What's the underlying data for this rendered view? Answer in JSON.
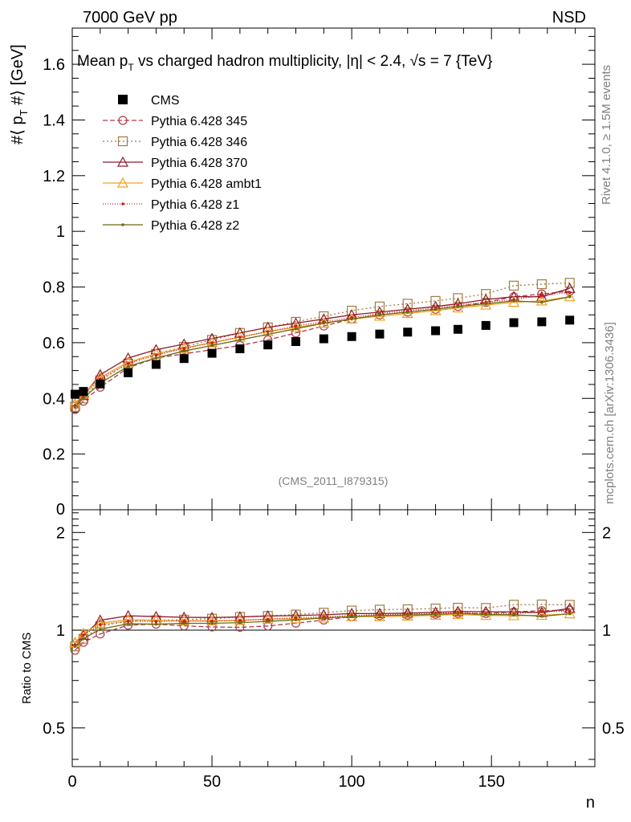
{
  "header": {
    "left": "7000 GeV pp",
    "right": "NSD"
  },
  "side_labels": {
    "rivet": "Rivet 4.1.0, ≥ 1.5M events",
    "mcplots": "mcplots.cern.ch [arXiv:1306.3436]"
  },
  "chart_data": {
    "type": "scatter",
    "title": "Mean p_T vs charged hadron multiplicity, |η| < 2.4, √s = 7 {TeV}",
    "title_parts": {
      "t1": "Mean p",
      "t1_sub": "T",
      "t2": " vs charged hadron multiplicity, ",
      "t3": "|η| < 2.4, ",
      "t4": "√s",
      "t5": " = 7 {TeV}"
    },
    "analysis_id": "(CMS_2011_I879315)",
    "xlabel": "n",
    "ylabel": "#⟨ p_T #⟩ [GeV]",
    "ylabel_parts": {
      "a": "#⟨ p",
      "sub": "T",
      "b": " #⟩ [GeV]"
    },
    "ratio_ylabel": "Ratio to CMS",
    "xlim": [
      0,
      187
    ],
    "ylim": [
      0,
      1.73
    ],
    "ratio_ylim": [
      0.38,
      2.35
    ],
    "x_ticks": [
      0,
      50,
      100,
      150
    ],
    "y_ticks": [
      0.2,
      0.4,
      0.6,
      0.8,
      1,
      1.2,
      1.4,
      1.6
    ],
    "y_tick_labels": [
      "0.2",
      "0.4",
      "0.6",
      "0.8",
      "1",
      "1.2",
      "1.4",
      "1.6"
    ],
    "zero_label": "0",
    "ratio_ticks": [
      0.5,
      1,
      2
    ],
    "ratio_tick_labels": [
      "0.5",
      "1",
      "2"
    ],
    "data": {
      "name": "CMS",
      "color": "#000000",
      "x": [
        1,
        4,
        10,
        20,
        30,
        40,
        50,
        60,
        70,
        80,
        90,
        100,
        110,
        120,
        130,
        138,
        148,
        158,
        168,
        178
      ],
      "y": [
        0.415,
        0.425,
        0.452,
        0.492,
        0.522,
        0.543,
        0.562,
        0.578,
        0.592,
        0.604,
        0.614,
        0.622,
        0.631,
        0.638,
        0.643,
        0.648,
        0.662,
        0.672,
        0.675,
        0.681
      ]
    },
    "series": [
      {
        "name": "Pythia 6.428 345",
        "color": "#B13A4A",
        "dash": "6,3",
        "marker": "circle",
        "x": [
          1,
          4,
          10,
          20,
          30,
          40,
          50,
          60,
          70,
          80,
          90,
          100,
          110,
          120,
          130,
          138,
          148,
          158,
          168,
          178
        ],
        "y": [
          0.36,
          0.39,
          0.44,
          0.51,
          0.545,
          0.56,
          0.575,
          0.59,
          0.61,
          0.635,
          0.66,
          0.685,
          0.7,
          0.71,
          0.72,
          0.73,
          0.745,
          0.765,
          0.775,
          0.785
        ]
      },
      {
        "name": "Pythia 6.428 346",
        "color": "#A07B41",
        "dash": "2,3",
        "marker": "square",
        "x": [
          1,
          4,
          10,
          20,
          30,
          40,
          50,
          60,
          70,
          80,
          90,
          100,
          110,
          120,
          130,
          138,
          148,
          158,
          168,
          178
        ],
        "y": [
          0.37,
          0.4,
          0.465,
          0.525,
          0.56,
          0.585,
          0.61,
          0.635,
          0.655,
          0.675,
          0.695,
          0.715,
          0.73,
          0.74,
          0.75,
          0.76,
          0.775,
          0.805,
          0.81,
          0.815
        ]
      },
      {
        "name": "Pythia 6.428 370",
        "color": "#8E1A2C",
        "dash": "",
        "marker": "triangle",
        "x": [
          1,
          4,
          10,
          20,
          30,
          40,
          50,
          60,
          70,
          80,
          90,
          100,
          110,
          120,
          130,
          138,
          148,
          158,
          168,
          178
        ],
        "y": [
          0.38,
          0.41,
          0.485,
          0.545,
          0.575,
          0.595,
          0.615,
          0.635,
          0.655,
          0.67,
          0.685,
          0.7,
          0.71,
          0.72,
          0.73,
          0.74,
          0.755,
          0.765,
          0.765,
          0.795
        ]
      },
      {
        "name": "Pythia 6.428 ambt1",
        "color": "#F0A020",
        "dash": "",
        "marker": "triangle",
        "x": [
          1,
          4,
          10,
          20,
          30,
          40,
          50,
          60,
          70,
          80,
          90,
          100,
          110,
          120,
          130,
          138,
          148,
          158,
          168,
          178
        ],
        "y": [
          0.38,
          0.415,
          0.475,
          0.53,
          0.56,
          0.58,
          0.6,
          0.62,
          0.64,
          0.655,
          0.67,
          0.685,
          0.695,
          0.705,
          0.715,
          0.725,
          0.735,
          0.745,
          0.75,
          0.765
        ]
      },
      {
        "name": "Pythia 6.428 z1",
        "color": "#CC1B1B",
        "dash": "1,2",
        "marker": "dot",
        "x": [
          1,
          4,
          10,
          20,
          30,
          40,
          50,
          60,
          70,
          80,
          90,
          100,
          110,
          120,
          130,
          138,
          148,
          158,
          168,
          178
        ],
        "y": [
          0.375,
          0.41,
          0.47,
          0.525,
          0.555,
          0.58,
          0.6,
          0.62,
          0.64,
          0.66,
          0.675,
          0.69,
          0.705,
          0.715,
          0.725,
          0.735,
          0.745,
          0.755,
          0.77,
          0.78
        ]
      },
      {
        "name": "Pythia 6.428 z2",
        "color": "#6B6B10",
        "dash": "",
        "marker": "dot",
        "x": [
          1,
          4,
          10,
          20,
          30,
          40,
          50,
          60,
          70,
          80,
          90,
          100,
          110,
          120,
          130,
          138,
          148,
          158,
          168,
          178
        ],
        "y": [
          0.37,
          0.4,
          0.455,
          0.515,
          0.545,
          0.57,
          0.59,
          0.61,
          0.63,
          0.65,
          0.67,
          0.685,
          0.7,
          0.71,
          0.72,
          0.73,
          0.74,
          0.75,
          0.745,
          0.765
        ]
      }
    ]
  }
}
